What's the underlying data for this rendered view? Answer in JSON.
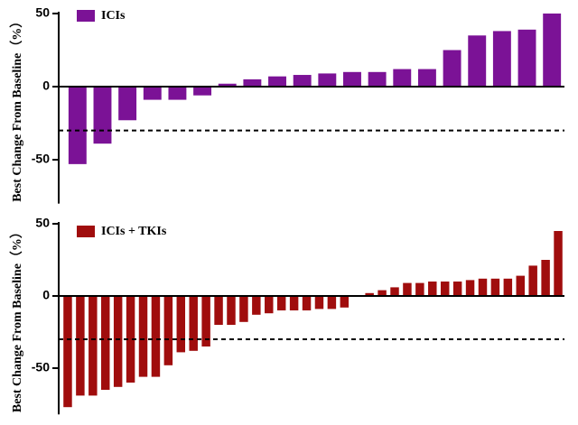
{
  "chart_data": [
    {
      "type": "bar",
      "ylabel": "Best Change From Baseline（%）",
      "series": [
        {
          "name": "ICIs",
          "color": "#7b1296",
          "values": [
            -53,
            -39,
            -23,
            -9,
            -9,
            -6,
            2,
            5,
            7,
            8,
            9,
            10,
            10,
            12,
            12,
            25,
            35,
            38,
            39,
            50
          ]
        }
      ],
      "ylim": [
        -80,
        50
      ],
      "yticks": [
        -50,
        0,
        50
      ],
      "reference_line": -30
    },
    {
      "type": "bar",
      "ylabel": "Best Change From Baseline（%）",
      "series": [
        {
          "name": "ICIs + TKIs",
          "color": "#a00d0d",
          "values": [
            -77,
            -69,
            -69,
            -65,
            -63,
            -60,
            -56,
            -56,
            -48,
            -39,
            -38,
            -35,
            -20,
            -20,
            -18,
            -13,
            -12,
            -10,
            -10,
            -10,
            -9,
            -9,
            -8,
            0,
            2,
            4,
            6,
            9,
            9,
            10,
            10,
            10,
            11,
            12,
            12,
            12,
            14,
            21,
            25,
            45
          ]
        }
      ],
      "ylim": [
        -82,
        50
      ],
      "yticks": [
        -50,
        0,
        50
      ],
      "reference_line": -30
    }
  ]
}
